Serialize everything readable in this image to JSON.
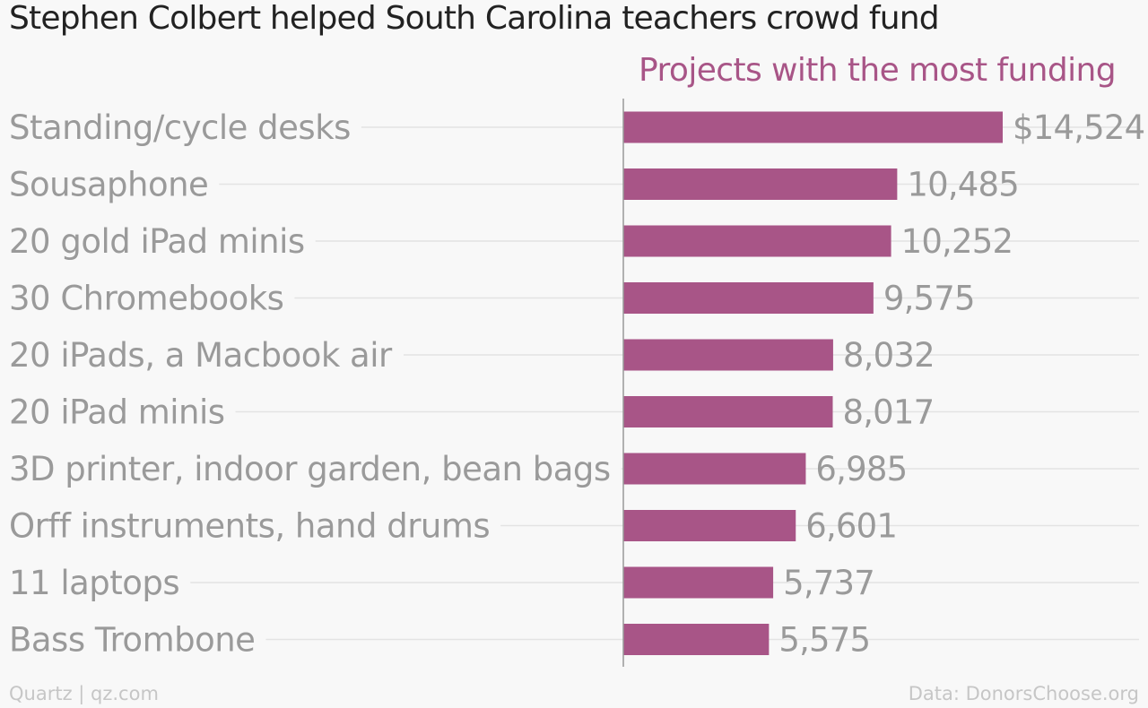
{
  "title": "Stephen Colbert helped South Carolina teachers crowd fund",
  "footer": {
    "left": "Quartz | qz.com",
    "right": "Data: DonorsChoose.org"
  },
  "colors": {
    "bar": "#a85587",
    "subtitle": "#a85587",
    "gridline": "#e3e3e3",
    "axis": "#999999",
    "label": "#9a9a9a",
    "background": "#f8f8f8"
  },
  "chart_data": {
    "type": "bar",
    "orientation": "horizontal",
    "title": "Stephen Colbert helped South Carolina teachers crowd fund",
    "subtitle": "Projects with the most funding",
    "categories": [
      "Standing/cycle desks",
      "Sousaphone",
      "20 gold iPad minis",
      "30 Chromebooks",
      "20 iPads, a Macbook air",
      "20 iPad minis",
      "3D printer, indoor garden, bean bags",
      "Orff instruments, hand drums",
      "11 laptops",
      "Bass Trombone"
    ],
    "values": [
      14524,
      10485,
      10252,
      9575,
      8032,
      8017,
      6985,
      6601,
      5737,
      5575
    ],
    "value_labels": [
      "$14,524",
      "10,485",
      "10,252",
      "9,575",
      "8,032",
      "8,017",
      "6,985",
      "6,601",
      "5,737",
      "5,575"
    ],
    "xlim": [
      0,
      14524
    ],
    "grid": true,
    "legend": "none"
  }
}
